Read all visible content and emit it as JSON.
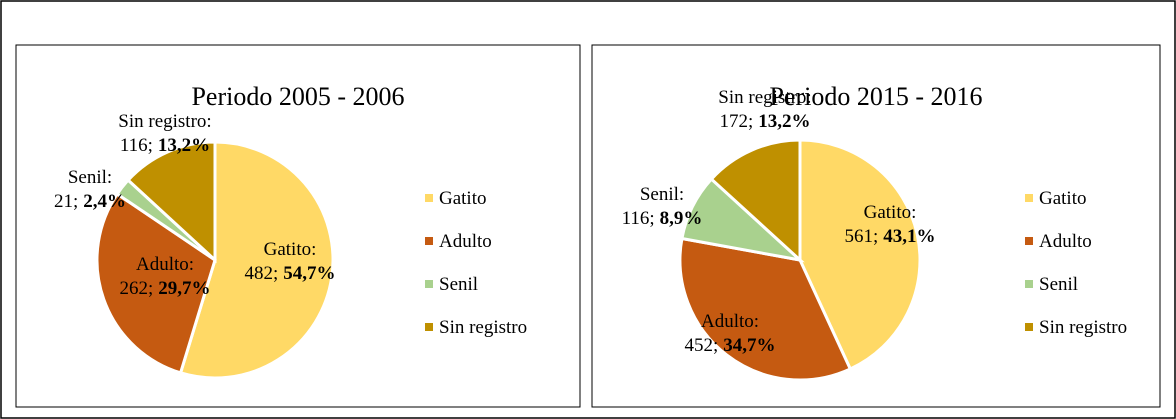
{
  "chart_data": [
    {
      "type": "pie",
      "title": "Periodo 2005 - 2006",
      "categories": [
        "Gatito",
        "Adulto",
        "Senil",
        "Sin registro"
      ],
      "label_names": [
        "Gatito:",
        "Adulto:",
        "Senil:",
        "Sin registro:"
      ],
      "values": [
        482,
        262,
        21,
        116
      ],
      "value_labels": [
        "482;",
        "262;",
        "21;",
        "116;"
      ],
      "shares": [
        54.7,
        29.7,
        2.4,
        13.2
      ],
      "share_labels": [
        "54,7%",
        "29,7%",
        "2,4%",
        "13,2%"
      ],
      "colors": [
        "#FFD966",
        "#C55A11",
        "#A9D18E",
        "#BF9000"
      ],
      "legend": "right"
    },
    {
      "type": "pie",
      "title": "Periodo 2015 - 2016",
      "categories": [
        "Gatito",
        "Adulto",
        "Senil",
        "Sin registro"
      ],
      "label_names": [
        "Gatito:",
        "Adulto:",
        "Senil:",
        "Sin registro:"
      ],
      "values": [
        561,
        452,
        116,
        172
      ],
      "value_labels": [
        "561;",
        "452;",
        "116;",
        "172;"
      ],
      "shares": [
        43.1,
        34.7,
        8.9,
        13.2
      ],
      "share_labels": [
        "43,1%",
        "34,7%",
        "8,9%",
        "13,2%"
      ],
      "colors": [
        "#FFD966",
        "#C55A11",
        "#A9D18E",
        "#BF9000"
      ],
      "legend": "right"
    }
  ]
}
